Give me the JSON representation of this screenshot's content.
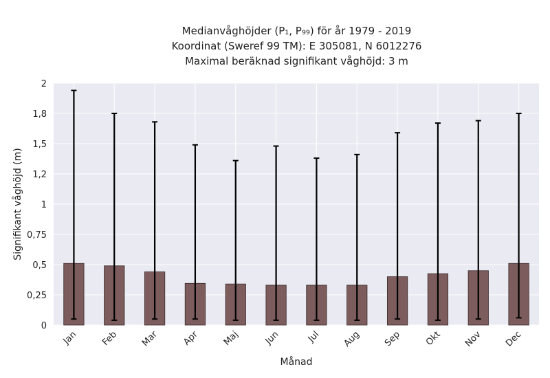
{
  "chart_data": {
    "type": "bar",
    "title_lines": [
      "Medianvåghöjder (P₁, P₉₉) för år 1979 - 2019",
      "Koordinat (Sweref 99 TM): E 305081, N 6012276",
      "Maximal beräknad signifikant våghöjd: 3 m"
    ],
    "xlabel": "Månad",
    "ylabel": "Signifikant våghöjd (m)",
    "ylim": [
      0,
      2.0
    ],
    "yticks": [
      0,
      0.25,
      0.5,
      0.75,
      1.0,
      1.25,
      1.5,
      1.75,
      2.0
    ],
    "ytick_labels": [
      "0",
      "0,25",
      "0,5",
      "0,75",
      "1",
      "1,2",
      "1,5",
      "1,8",
      "2"
    ],
    "categories": [
      "Jan",
      "Feb",
      "Mar",
      "Apr",
      "Maj",
      "Jun",
      "Jul",
      "Aug",
      "Sep",
      "Okt",
      "Nov",
      "Dec"
    ],
    "values": [
      0.51,
      0.49,
      0.44,
      0.345,
      0.34,
      0.33,
      0.33,
      0.33,
      0.4,
      0.425,
      0.45,
      0.51
    ],
    "p1": [
      0.05,
      0.04,
      0.05,
      0.05,
      0.04,
      0.04,
      0.04,
      0.04,
      0.05,
      0.04,
      0.05,
      0.06
    ],
    "p99": [
      1.94,
      1.75,
      1.68,
      1.49,
      1.36,
      1.48,
      1.38,
      1.41,
      1.59,
      1.67,
      1.69,
      1.75
    ],
    "grid": true,
    "colors": {
      "bar_fill": "#7c5c5c",
      "bar_edge": "#3a2a2a",
      "error_bar": "#000000",
      "plot_background": "#eaeaf2",
      "grid": "#ffffff"
    }
  }
}
